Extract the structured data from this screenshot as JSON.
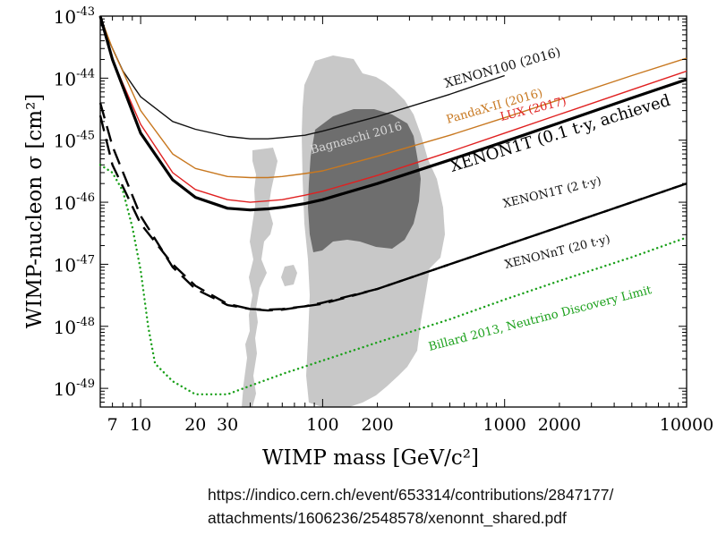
{
  "chart_data": {
    "type": "line",
    "title": "",
    "xlabel": "WIMP mass [GeV/c²]",
    "ylabel": "WIMP-nucleon σ [cm²]",
    "xscale": "log",
    "yscale": "log",
    "xlim": [
      6,
      10000
    ],
    "ylim": [
      5e-50,
      1e-43
    ],
    "x_ticks": [
      {
        "value": 7,
        "label": "7"
      },
      {
        "value": 10,
        "label": "10"
      },
      {
        "value": 20,
        "label": "20"
      },
      {
        "value": 30,
        "label": "30"
      },
      {
        "value": 100,
        "label": "100"
      },
      {
        "value": 200,
        "label": "200"
      },
      {
        "value": 1000,
        "label": "1000"
      },
      {
        "value": 2000,
        "label": "2000"
      },
      {
        "value": 10000,
        "label": "10000"
      }
    ],
    "y_ticks": [
      {
        "value": 1e-43,
        "exp": "-43"
      },
      {
        "value": 1e-44,
        "exp": "-44"
      },
      {
        "value": 1e-45,
        "exp": "-45"
      },
      {
        "value": 1e-46,
        "exp": "-46"
      },
      {
        "value": 1e-47,
        "exp": "-47"
      },
      {
        "value": 1e-48,
        "exp": "-48"
      },
      {
        "value": 1e-49,
        "exp": "-49"
      }
    ],
    "tick_base": "10",
    "series": [
      {
        "name": "XENON100 (2016)",
        "color": "#111111",
        "style": "solid",
        "width": 1.4,
        "x": [
          6,
          8,
          10,
          15,
          20,
          30,
          40,
          50,
          60,
          80,
          100,
          200,
          500,
          1000
        ],
        "y": [
          8e-44,
          1.3e-44,
          5e-45,
          2e-45,
          1.5e-45,
          1.15e-45,
          1.05e-45,
          1.05e-45,
          1.1e-45,
          1.2e-45,
          1.4e-45,
          2.4e-45,
          5.5e-45,
          1.1e-44
        ]
      },
      {
        "name": "PandaX-II (2016)",
        "color": "#c87820",
        "style": "solid",
        "width": 1.4,
        "x": [
          6,
          7,
          10,
          15,
          20,
          30,
          40,
          50,
          60,
          80,
          100,
          200,
          500,
          1000,
          2000,
          5000,
          10000
        ],
        "y": [
          1e-43,
          3e-44,
          3e-45,
          6e-46,
          3.5e-46,
          2.6e-46,
          2.5e-46,
          2.5e-46,
          2.6e-46,
          2.9e-46,
          3.2e-46,
          5.5e-46,
          1.2e-45,
          2.3e-45,
          4.5e-45,
          1.1e-44,
          2.1e-44
        ]
      },
      {
        "name": "LUX (2017)",
        "color": "#e02020",
        "style": "solid",
        "width": 1.4,
        "x": [
          6,
          7,
          10,
          15,
          20,
          30,
          40,
          50,
          60,
          80,
          100,
          200,
          500,
          1000,
          2000,
          5000,
          10000
        ],
        "y": [
          1e-43,
          2e-44,
          1.8e-45,
          3e-46,
          1.6e-46,
          1.1e-46,
          1e-46,
          1.05e-46,
          1.1e-46,
          1.3e-46,
          1.5e-46,
          2.7e-46,
          6.5e-46,
          1.3e-45,
          2.6e-45,
          6.5e-45,
          1.3e-44
        ]
      },
      {
        "name": "XENON1T (0.1 t·y,  achieved",
        "color": "#000000",
        "style": "solid",
        "width": 3.2,
        "x": [
          6,
          7,
          10,
          15,
          20,
          30,
          40,
          50,
          60,
          80,
          100,
          200,
          500,
          1000,
          2000,
          5000,
          10000
        ],
        "y": [
          1e-43,
          2e-44,
          1.3e-45,
          2.3e-46,
          1.2e-46,
          8e-47,
          7.5e-47,
          7.8e-47,
          8.3e-47,
          9.5e-47,
          1.1e-46,
          2e-46,
          4.8e-46,
          9.5e-46,
          1.9e-45,
          4.8e-45,
          9.5e-45
        ]
      },
      {
        "name": "XENON1T (2 t·y)",
        "color": "#000000",
        "style": "dashed",
        "width": 2.4,
        "x": [
          6,
          7,
          10,
          15,
          20,
          30,
          40,
          50,
          60,
          80,
          100,
          200,
          500,
          1000,
          2000,
          5000,
          10000
        ],
        "y": [
          2.5e-45,
          4e-46,
          4.5e-47,
          1e-47,
          4.5e-48,
          2.3e-48,
          1.9e-48,
          1.8e-48,
          1.85e-48,
          2.1e-48,
          2.3e-48,
          4e-48,
          1e-47,
          2e-47,
          4e-47,
          1e-46,
          2e-46
        ]
      }
    ]
  },
  "figure_series": [
    {
      "name": "XENON1T (2 t·y)",
      "color": "#000000",
      "style": "dashed",
      "width": 2.4,
      "x": [
        6,
        7,
        10,
        15,
        20,
        30,
        40,
        50,
        60,
        80,
        100,
        200,
        500,
        1000,
        2000,
        5000,
        10000
      ],
      "y": [
        2.5e-45,
        4e-46,
        4.5e-47,
        1e-47,
        4.5e-48,
        2.3e-48,
        1.9e-48,
        1.8e-48,
        1.85e-48,
        2.1e-48,
        2.3e-48,
        4e-48,
        1e-47,
        2e-47,
        4e-47,
        1e-46,
        2e-46
      ]
    }
  ],
  "extra_series": [
    {
      "name": "XENONnT (20 t·y)",
      "color": "#000000",
      "style": "dashed",
      "width": 2.4,
      "x": [
        6,
        7,
        10,
        15,
        20,
        30,
        40,
        50,
        60,
        80,
        100,
        200,
        500,
        1000,
        2000,
        5000,
        10000
      ],
      "y": [
        4e-45,
        8e-46,
        6e-47,
        9e-48,
        4e-48,
        2.2e-48,
        1.9e-48,
        1.85e-48,
        1.9e-48,
        2.1e-48,
        2.4e-48,
        4e-48,
        1e-47,
        2e-47,
        4e-47,
        1e-46,
        2e-46
      ]
    },
    {
      "name": "Billard 2013, Neutrino Discovery Limit",
      "color": "#1aa01a",
      "style": "dotted",
      "width": 2.4,
      "x": [
        6,
        7,
        8,
        9,
        10,
        11,
        12,
        15,
        20,
        25,
        30,
        40,
        60,
        100,
        200,
        500,
        1000,
        2000,
        5000,
        10000
      ],
      "y": [
        4e-46,
        3e-46,
        1.5e-46,
        4e-47,
        8e-48,
        1e-48,
        2.5e-49,
        1.3e-49,
        8e-50,
        8e-50,
        8e-50,
        1.1e-49,
        1.7e-49,
        2.8e-49,
        5.5e-49,
        1.3e-48,
        2.7e-48,
        5.4e-48,
        1.3e-47,
        2.7e-47
      ]
    }
  ],
  "labels": {
    "xenon100": "XENON100 (2016)",
    "pandax": "PandaX-II (2016)",
    "lux": "LUX (2017)",
    "xenon1t": "XENON1T (0.1 t·y,  achieved",
    "xenon1t_2ty": "XENON1T (2 t·y)",
    "xenonnt": "XENONnT (20 t·y)",
    "billard": "Billard 2013, Neutrino Discovery Limit",
    "bagnaschi": "Bagnaschi 2016"
  },
  "colors": {
    "region_light": "#c8c8c8",
    "region_dark": "#6e6e6e",
    "axis": "#000000"
  },
  "source": {
    "line1": "https://indico.cern.ch/event/653314/contributions/2847177/",
    "line2": "attachments/1606236/2548578/xenonnt_shared.pdf"
  }
}
